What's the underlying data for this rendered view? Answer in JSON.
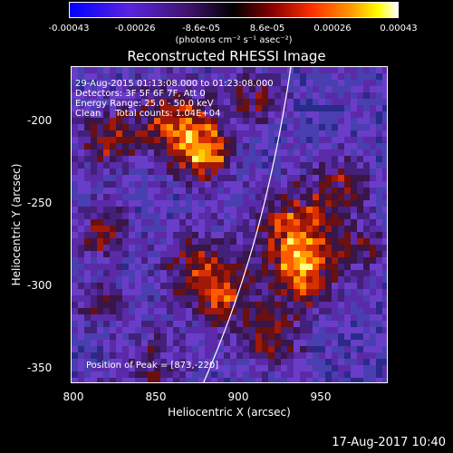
{
  "colorbar": {
    "ticks": [
      "-0.00043",
      "-0.00026",
      "-8.6e-05",
      "8.6e-05",
      "0.00026",
      "0.00043"
    ],
    "units": "(photons cm⁻² s⁻¹ asec⁻²)",
    "colors": [
      "#0000ff",
      "#6a1dd1",
      "#3a1060",
      "#000000",
      "#8b0000",
      "#ff3000",
      "#ff9a00",
      "#ffff00",
      "#ffffff"
    ]
  },
  "title": "Reconstructed RHESSI Image",
  "overlay": {
    "line1": "29-Aug-2015 01:13:08.000 to 01:23:08.000",
    "line2": "Detectors: 3F 5F 6F 7F, Att 0",
    "line3": "Energy Range: 25.0 - 50.0 keV",
    "line4": "Clean     Total counts: 1.04E+04",
    "peak": "Position of Peak = [873,-220]"
  },
  "y_axis": {
    "label": "Heliocentric Y (arcsec)",
    "ticks": [
      "-200",
      "-250",
      "-300",
      "-350"
    ]
  },
  "x_axis": {
    "label": "Heliocentric X (arcsec)",
    "ticks": [
      "800",
      "850",
      "900",
      "950"
    ]
  },
  "date_stamp": "17-Aug-2017 10:40"
}
